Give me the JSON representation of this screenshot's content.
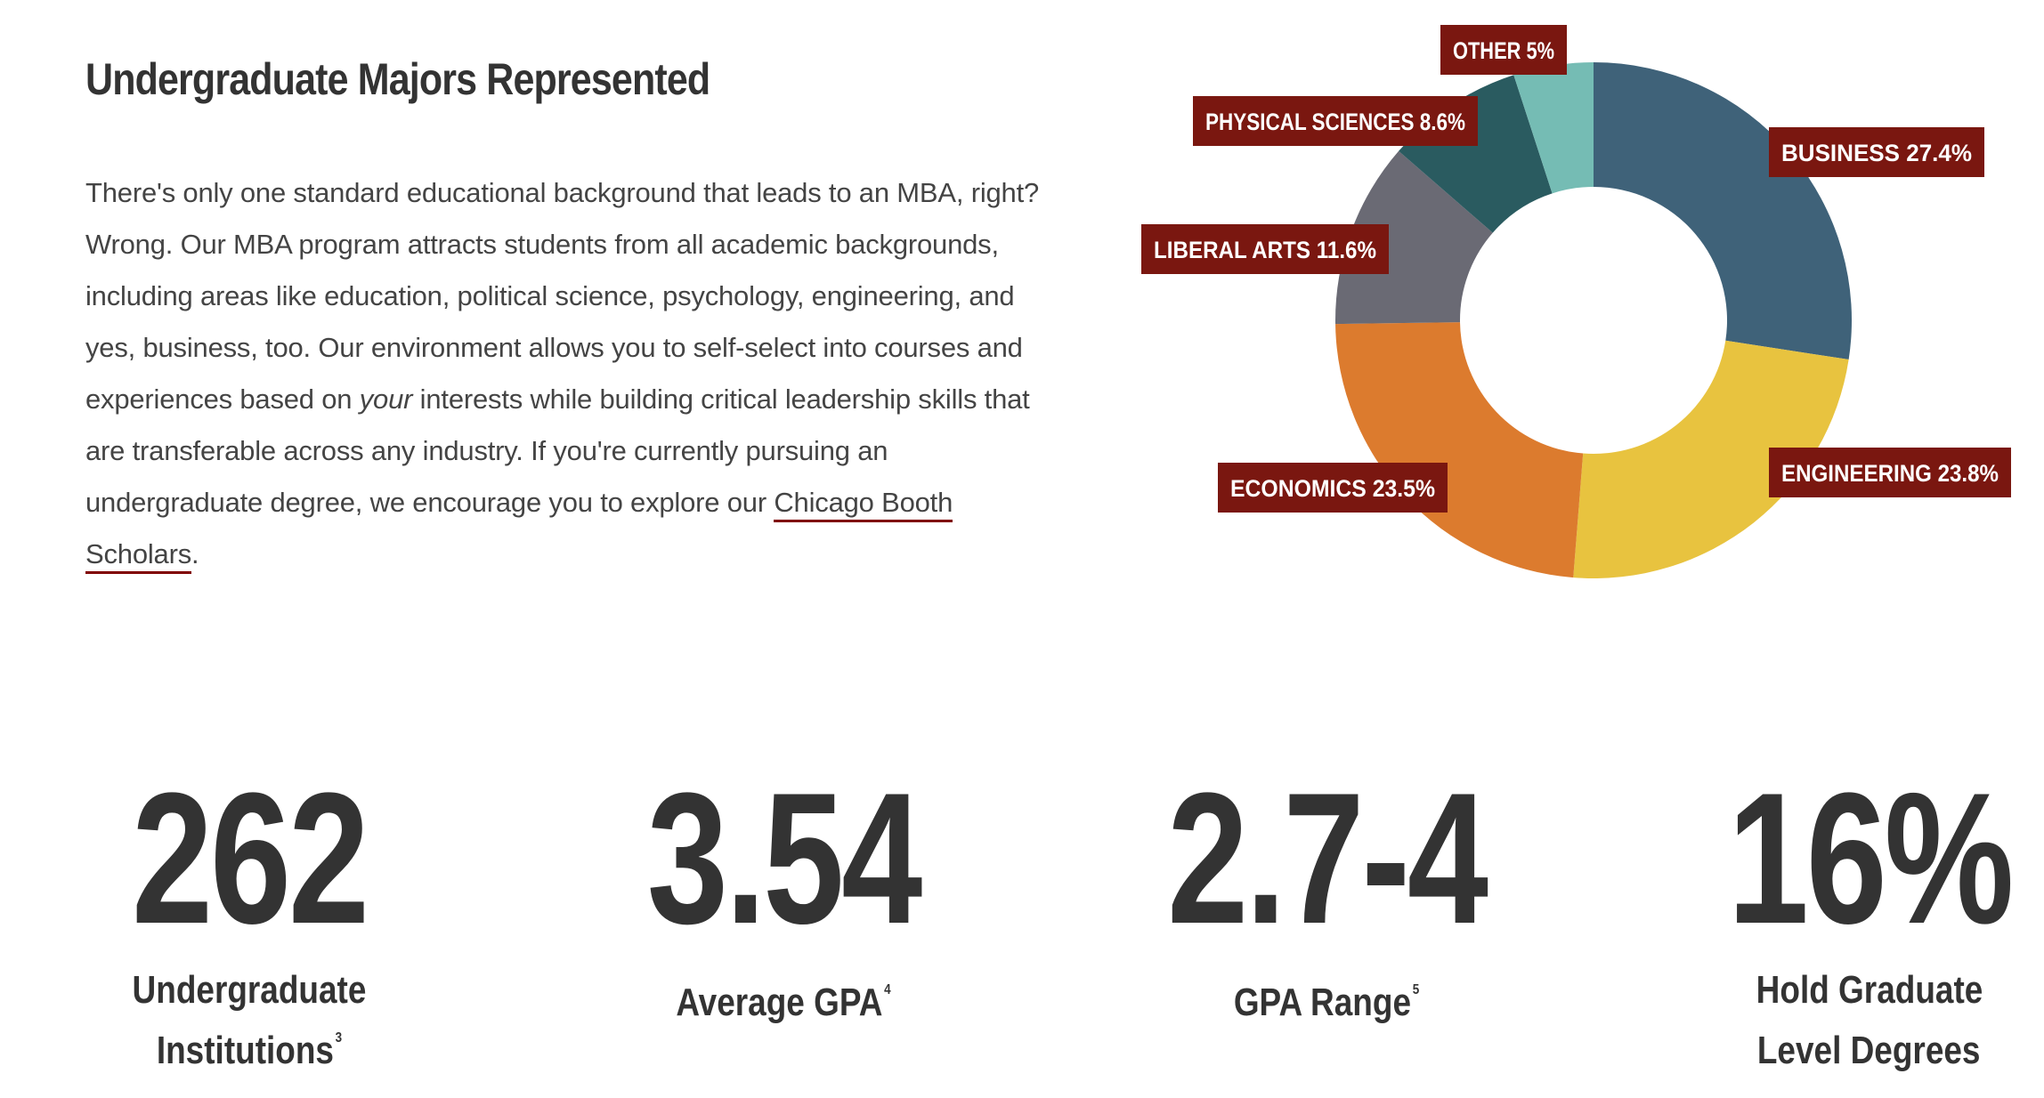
{
  "intro": {
    "title": "Undergraduate Majors Represented",
    "body_before_italic": "There's only one standard educational background that leads to an MBA, right? Wrong. Our MBA program attracts students from all academic backgrounds, including areas like education, political science, psychology, engineering, and yes, business, too. Our environment allows you to self-select into courses and experiences based on ",
    "body_italic": "your",
    "body_after_italic": " interests while building critical leadership skills that are transferable across any industry. If you're currently pursuing an undergraduate degree, we encourage you to explore our ",
    "link_text": "Chicago Booth Scholars",
    "body_end": "."
  },
  "chart_data": {
    "type": "pie",
    "title": "",
    "label_bg_color": "#7a1710",
    "slices": [
      {
        "label": "BUSINESS 27.4%",
        "value": 27.4,
        "color": "#3f6279"
      },
      {
        "label": "ENGINEERING 23.8%",
        "value": 23.8,
        "color": "#e8c33f"
      },
      {
        "label": "ECONOMICS 23.5%",
        "value": 23.5,
        "color": "#dc7b2e"
      },
      {
        "label": "LIBERAL ARTS 11.6%",
        "value": 11.6,
        "color": "#6a6a74"
      },
      {
        "label": "PHYSICAL SCIENCES 8.6%",
        "value": 8.6,
        "color": "#2a5b60"
      },
      {
        "label": "OTHER 5%",
        "value": 5,
        "color": "#75bcb4"
      }
    ]
  },
  "stats": [
    {
      "value": "262",
      "label": "Undergraduate Institutions",
      "footnote": "3"
    },
    {
      "value": "3.54",
      "label": "Average GPA",
      "footnote": "4"
    },
    {
      "value": "2.7-4",
      "label": "GPA Range",
      "footnote": "5"
    },
    {
      "value": "16%",
      "label": "Hold Graduate Level Degrees",
      "footnote": ""
    }
  ]
}
